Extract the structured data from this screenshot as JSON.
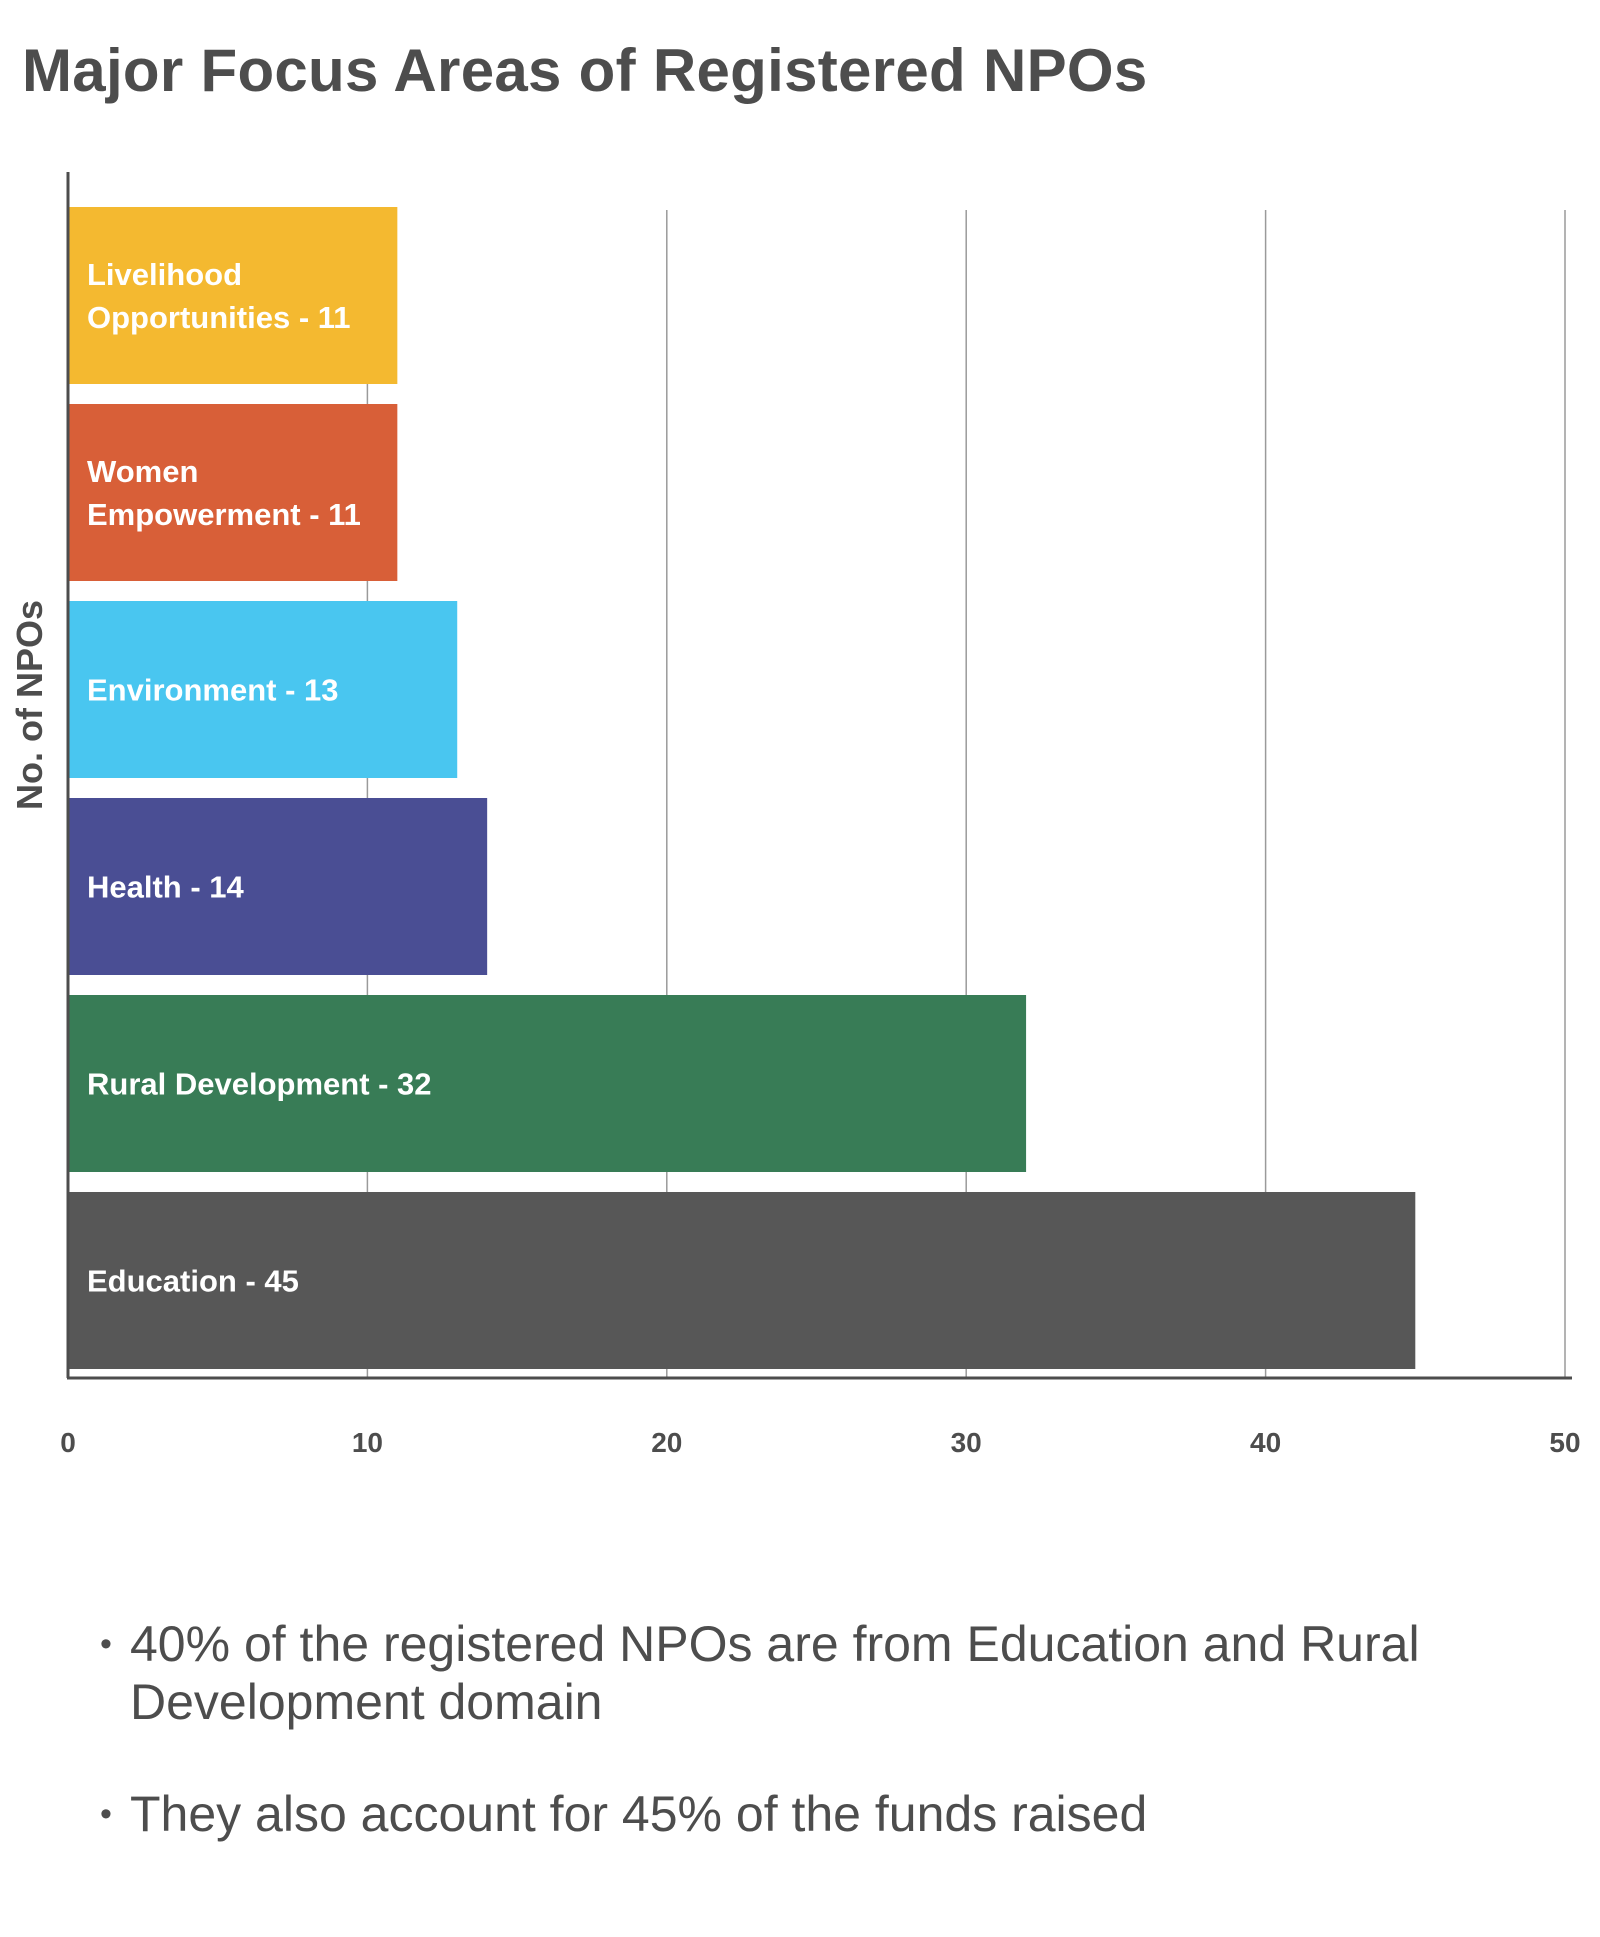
{
  "page": {
    "title": "Major Focus Areas of Registered NPOs"
  },
  "chart_data": {
    "type": "bar",
    "orientation": "horizontal",
    "title": "Major Focus Areas of Registered NPOs",
    "ylabel": "No. of NPOs",
    "xlabel": "",
    "xlim": [
      0,
      50
    ],
    "x_ticks": [
      "0",
      "10",
      "20",
      "30",
      "40",
      "50"
    ],
    "grid": "vertical gridlines on",
    "legend": "none",
    "bars": [
      {
        "category": "Livelihood Opportunities",
        "value": 11,
        "label_lines": [
          "Livelihood",
          "Opportunities - 11"
        ],
        "color": "#f4b930"
      },
      {
        "category": "Women Empowerment",
        "value": 11,
        "label_lines": [
          "Women",
          "Empowerment - 11"
        ],
        "color": "#d85f38"
      },
      {
        "category": "Environment",
        "value": 13,
        "label_lines": [
          "Environment - 13"
        ],
        "color": "#49c6f0"
      },
      {
        "category": "Health",
        "value": 14,
        "label_lines": [
          "Health - 14"
        ],
        "color": "#4a4e94"
      },
      {
        "category": "Rural Development",
        "value": 32,
        "label_lines": [
          "Rural Development - 32"
        ],
        "color": "#387c56"
      },
      {
        "category": "Education",
        "value": 45,
        "label_lines": [
          "Education - 45"
        ],
        "color": "#575757"
      }
    ]
  },
  "notes": [
    {
      "bullet": "•",
      "text": "40% of the registered NPOs are from Education and Rural Development domain"
    },
    {
      "bullet": "•",
      "text": "They also account for 45% of the funds raised"
    }
  ]
}
